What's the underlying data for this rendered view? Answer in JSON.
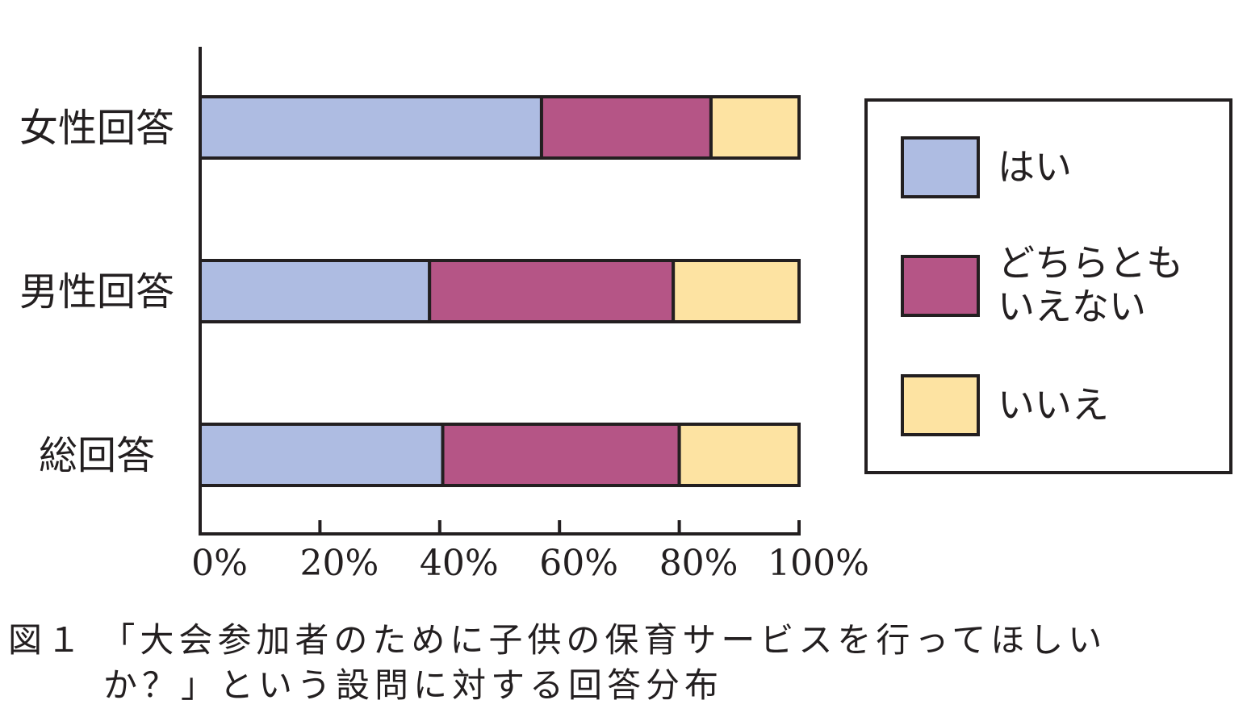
{
  "chart_data": {
    "type": "bar",
    "orientation": "horizontal",
    "stacked": true,
    "categories": [
      "女性回答",
      "男性回答",
      "総回答"
    ],
    "series": [
      {
        "name": "はい",
        "values": [
          57,
          38.3,
          40.5
        ],
        "color": "#aebce2"
      },
      {
        "name": "どちらともいえない",
        "values": [
          28.3,
          40.7,
          39.5
        ],
        "color": "#b55586"
      },
      {
        "name": "いいえ",
        "values": [
          14.7,
          21,
          20
        ],
        "color": "#fde3a2"
      }
    ],
    "x_ticks": [
      "0%",
      "20%",
      "40%",
      "60%",
      "80%",
      "100%"
    ],
    "xlim": [
      0,
      100
    ],
    "legend_position": "right",
    "legend_labels": [
      {
        "line1": "はい",
        "line2": ""
      },
      {
        "line1": "どちらとも",
        "line2": "いえない"
      },
      {
        "line1": "いいえ",
        "line2": ""
      }
    ],
    "title": "",
    "xlabel": "",
    "ylabel": ""
  },
  "caption": {
    "line1": "図１ 「大会参加者のために子供の保育サービスを行ってほしい",
    "line2": "か？」という設問に対する回答分布"
  }
}
